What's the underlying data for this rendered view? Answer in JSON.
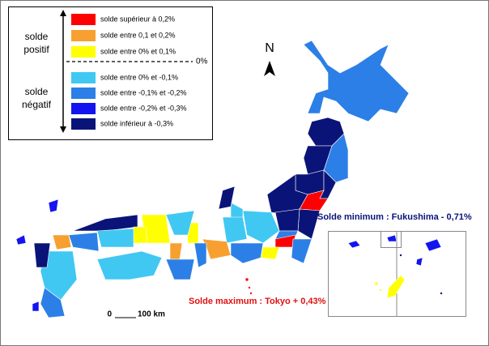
{
  "legend": {
    "positive_group": [
      "solde",
      "positif"
    ],
    "negative_group": [
      "solde",
      "négatif"
    ],
    "zero_label": "0%",
    "items": [
      {
        "label": "solde supérieur à 0,2%",
        "color": "#ff0000"
      },
      {
        "label": "solde entre 0,1 et 0,2%",
        "color": "#f7a030"
      },
      {
        "label": "solde entre 0% et 0,1%",
        "color": "#ffff00"
      },
      {
        "label": "solde entre 0% et -0,1%",
        "color": "#40c8f2"
      },
      {
        "label": "solde entre -0,1% et -0,2%",
        "color": "#2c7fe6"
      },
      {
        "label": "solde entre -0,2% et -0,3%",
        "color": "#1414f0"
      },
      {
        "label": "solde inférieur à -0,3%",
        "color": "#0a1478"
      }
    ]
  },
  "north_label": "N",
  "annotations": {
    "minimum": "Solde minimum : Fukushima - 0,71%",
    "maximum": "Solde maximum : Tokyo + 0,43%"
  },
  "scale": {
    "start": "0",
    "end": "100 km"
  }
}
